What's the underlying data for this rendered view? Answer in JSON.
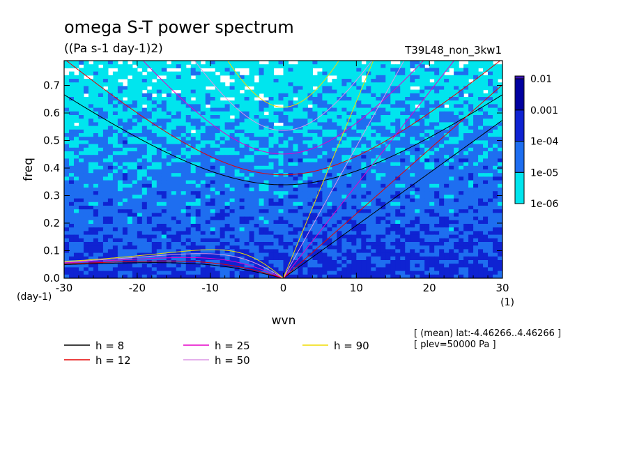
{
  "chart_data": {
    "type": "heatmap",
    "title": "omega S-T power spectrum",
    "units": "((Pa s-1 day-1)2)",
    "experiment": "T39L48_non_3kw1",
    "xlabel": "wvn",
    "ylabel": "freq",
    "x_unit_label": "(1)",
    "y_unit_label": "(day-1)",
    "xlim": [
      -30,
      30
    ],
    "ylim": [
      0,
      0.79
    ],
    "x_ticks": [
      -30,
      -20,
      -10,
      0,
      10,
      20,
      30
    ],
    "x_tick_labels": [
      "-30",
      "-20",
      "-10",
      "0",
      "10",
      "20",
      "30"
    ],
    "y_ticks": [
      0.0,
      0.1,
      0.2,
      0.3,
      0.4,
      0.5,
      0.6,
      0.7
    ],
    "y_tick_labels": [
      "0.0",
      "0.1",
      "0.2",
      "0.3",
      "0.4",
      "0.5",
      "0.6",
      "0.7"
    ],
    "colorbar": {
      "levels": [
        "1e-06",
        "1e-05",
        "1e-04",
        "0.001",
        "0.01"
      ],
      "colors": [
        "#00e5ee",
        "#1e6ef0",
        "#0f23d2",
        "#0000a0",
        "#3c14b4"
      ]
    },
    "dispersion_curves": [
      {
        "name": "h =  8",
        "h": 8,
        "color": "#000000"
      },
      {
        "name": "h = 12",
        "h": 12,
        "color": "#e60000"
      },
      {
        "name": "h = 25",
        "h": 25,
        "color": "#e600c8"
      },
      {
        "name": "h = 50",
        "h": 50,
        "color": "#dc96e6"
      },
      {
        "name": "h = 90",
        "h": 90,
        "color": "#f0dc00"
      }
    ],
    "annotation": {
      "line1": "[ (mean) lat:-4.46266..4.46266 ]",
      "line2": "[ plev=50000 Pa ]"
    }
  }
}
